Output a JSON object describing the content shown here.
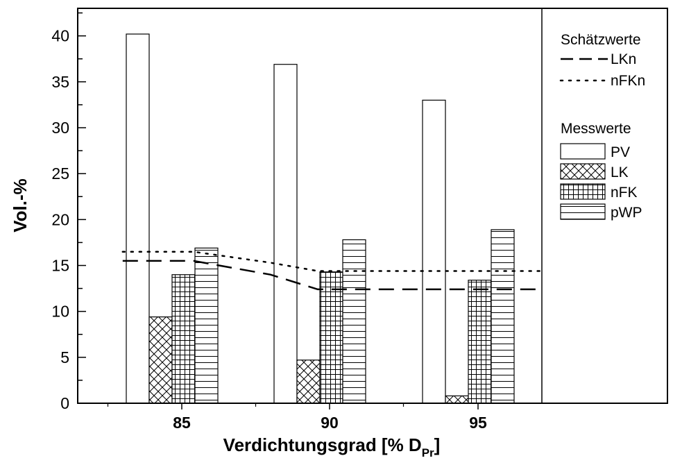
{
  "chart_data": {
    "type": "bar",
    "xlabel": "Verdichtungsgrad [% D",
    "xlabel_sub": "Pr",
    "xlabel_end": "]",
    "ylabel": "Vol.-%",
    "ylim": [
      0,
      43
    ],
    "yticks": [
      "0",
      "5",
      "10",
      "15",
      "20",
      "25",
      "30",
      "35",
      "40"
    ],
    "categories": [
      "85",
      "90",
      "95"
    ],
    "series": [
      {
        "name": "PV",
        "values": [
          40.2,
          36.9,
          33.0
        ],
        "pattern": "none"
      },
      {
        "name": "LK",
        "values": [
          9.4,
          4.7,
          0.8
        ],
        "pattern": "crosshatch"
      },
      {
        "name": "nFK",
        "values": [
          14.0,
          14.3,
          13.4
        ],
        "pattern": "grid"
      },
      {
        "name": "pWP",
        "values": [
          16.9,
          17.8,
          18.9
        ],
        "pattern": "horizontal"
      }
    ],
    "estimates": [
      {
        "name": "LKn",
        "dash": "dashed",
        "points": [
          [
            83,
            15.5
          ],
          [
            85.4,
            15.5
          ],
          [
            88,
            14.0
          ],
          [
            89.6,
            12.4
          ],
          [
            96,
            12.4
          ],
          [
            97.2,
            12.4
          ]
        ]
      },
      {
        "name": "nFKn",
        "dash": "dotted",
        "points": [
          [
            83,
            16.5
          ],
          [
            85.4,
            16.5
          ],
          [
            88,
            15.3
          ],
          [
            89.6,
            14.4
          ],
          [
            96,
            14.4
          ],
          [
            97.2,
            14.4
          ]
        ]
      }
    ],
    "legend": {
      "placement": "right",
      "estimates_title": "Schätzwerte",
      "measured_title": "Messwerte"
    },
    "grid": false
  }
}
